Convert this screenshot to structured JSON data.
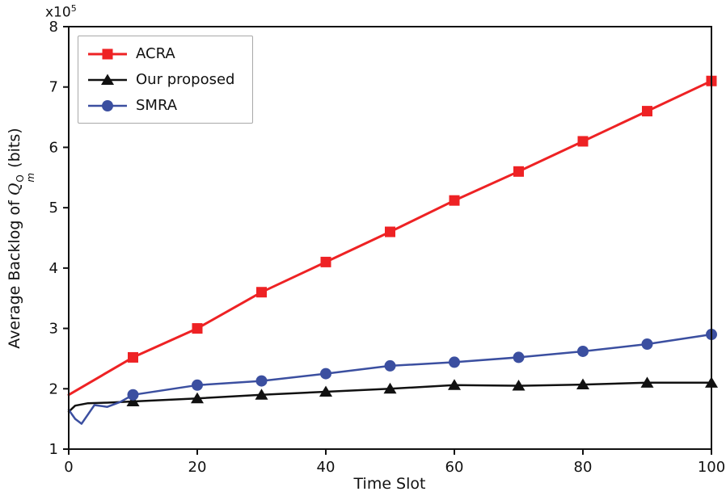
{
  "chart_data": {
    "type": "line",
    "title": "",
    "xlabel": "Time Slot",
    "ylabel_prefix": "Average Backlog of ",
    "ylabel_var": "Q",
    "ylabel_sup": "O",
    "ylabel_sub": "m",
    "ylabel_suffix": " (bits)",
    "scale_base": "x10",
    "scale_exp": "5",
    "xlim": [
      0,
      100
    ],
    "ylim": [
      1,
      8
    ],
    "xticks": [
      0,
      20,
      40,
      60,
      80,
      100
    ],
    "yticks": [
      1,
      2,
      3,
      4,
      5,
      6,
      7,
      8
    ],
    "grid": false,
    "legend_position": "upper-left",
    "draw_order": [
      1,
      2,
      0
    ],
    "series": [
      {
        "name": "ACRA",
        "color": "#ee2224",
        "marker": "square",
        "line_width": 3,
        "x": [
          0,
          10,
          20,
          30,
          40,
          50,
          60,
          70,
          80,
          90,
          100
        ],
        "y": [
          1.9,
          2.52,
          3.0,
          3.6,
          4.1,
          4.6,
          5.12,
          5.6,
          6.1,
          6.6,
          7.1
        ],
        "markers_at": [
          10,
          20,
          30,
          40,
          50,
          60,
          70,
          80,
          90,
          100
        ]
      },
      {
        "name": "Our proposed",
        "color": "#111111",
        "marker": "triangle",
        "line_width": 2.5,
        "x": [
          0,
          1,
          3,
          6,
          10,
          20,
          30,
          40,
          50,
          60,
          70,
          80,
          90,
          100
        ],
        "y": [
          1.62,
          1.72,
          1.76,
          1.77,
          1.79,
          1.84,
          1.9,
          1.95,
          2.0,
          2.06,
          2.05,
          2.07,
          2.1,
          2.1
        ],
        "markers_at": [
          10,
          20,
          30,
          40,
          50,
          60,
          70,
          80,
          90,
          100
        ]
      },
      {
        "name": "SMRA",
        "color": "#3b4fa0",
        "marker": "circle",
        "line_width": 2.5,
        "x": [
          0,
          1,
          2,
          4,
          6,
          8,
          10,
          20,
          30,
          40,
          50,
          60,
          70,
          80,
          90,
          100
        ],
        "y": [
          1.65,
          1.5,
          1.42,
          1.73,
          1.7,
          1.78,
          1.9,
          2.06,
          2.13,
          2.25,
          2.38,
          2.44,
          2.52,
          2.62,
          2.74,
          2.9
        ],
        "markers_at": [
          10,
          20,
          30,
          40,
          50,
          60,
          70,
          80,
          90,
          100
        ]
      }
    ]
  }
}
